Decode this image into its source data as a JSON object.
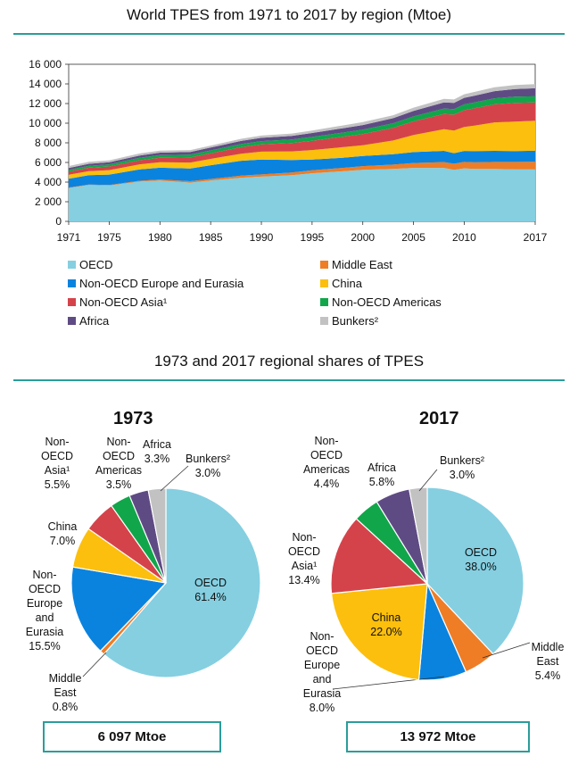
{
  "titles": {
    "area": "World TPES from 1971 to 2017 by region (Mtoe)",
    "pies": "1973 and 2017 regional shares of TPES"
  },
  "colors": {
    "OECD": "#85cfe1",
    "Middle East": "#ee7d26",
    "Non-OECD Europe and Eurasia": "#0a83df",
    "China": "#fcbf0d",
    "Non-OECD Asia": "#d5434a",
    "Non-OECD Americas": "#11a64a",
    "Africa": "#5f4b84",
    "Bunkers": "#c2c2c2",
    "rule": "#2a9d9a"
  },
  "chart_data": [
    {
      "type": "area",
      "stacked": true,
      "title": "World TPES from 1971 to 2017 by region (Mtoe)",
      "ylim": [
        0,
        16000
      ],
      "yticks": [
        "0",
        "2 000",
        "4 000",
        "6 000",
        "8 000",
        "10 000",
        "12 000",
        "14 000",
        "16 000"
      ],
      "xticks": [
        "1971",
        "1975",
        "1980",
        "1985",
        "1990",
        "1995",
        "2000",
        "2005",
        "2010",
        "2017"
      ],
      "x": [
        1971,
        1973,
        1975,
        1978,
        1980,
        1983,
        1985,
        1988,
        1990,
        1993,
        1995,
        1998,
        2000,
        2003,
        2005,
        2008,
        2009,
        2010,
        2011,
        2013,
        2015,
        2017
      ],
      "series": [
        {
          "name": "OECD",
          "values": [
            3400,
            3700,
            3650,
            4050,
            4150,
            3950,
            4150,
            4450,
            4550,
            4700,
            4900,
            5100,
            5250,
            5350,
            5450,
            5450,
            5250,
            5400,
            5350,
            5350,
            5300,
            5300
          ]
        },
        {
          "name": "Middle East",
          "values": [
            50,
            50,
            60,
            90,
            110,
            140,
            170,
            200,
            230,
            270,
            300,
            350,
            380,
            430,
            500,
            590,
            620,
            650,
            660,
            700,
            750,
            770
          ]
        },
        {
          "name": "Non-OECD Europe and Eurasia",
          "values": [
            900,
            950,
            1050,
            1150,
            1200,
            1300,
            1400,
            1520,
            1520,
            1280,
            1100,
            1020,
            1020,
            1060,
            1100,
            1140,
            1080,
            1120,
            1140,
            1130,
            1100,
            1120
          ]
        },
        {
          "name": "China",
          "values": [
            400,
            420,
            460,
            520,
            560,
            600,
            640,
            720,
            800,
            880,
            960,
            1080,
            1100,
            1400,
            1750,
            2200,
            2300,
            2450,
            2600,
            2900,
            3000,
            3060
          ]
        },
        {
          "name": "Non-OECD Asia¹",
          "values": [
            320,
            340,
            370,
            420,
            460,
            520,
            570,
            660,
            740,
            850,
            950,
            1060,
            1140,
            1280,
            1380,
            1550,
            1620,
            1700,
            1760,
            1840,
            1920,
            1870
          ]
        },
        {
          "name": "Non-OECD Americas",
          "values": [
            180,
            200,
            220,
            250,
            270,
            280,
            300,
            320,
            330,
            360,
            390,
            430,
            450,
            470,
            510,
            560,
            560,
            590,
            600,
            620,
            630,
            620
          ]
        },
        {
          "name": "Africa",
          "values": [
            190,
            200,
            210,
            230,
            250,
            270,
            290,
            320,
            340,
            370,
            400,
            440,
            470,
            520,
            560,
            620,
            640,
            670,
            690,
            720,
            780,
            810
          ]
        },
        {
          "name": "Bunkers²",
          "values": [
            200,
            210,
            200,
            210,
            210,
            200,
            200,
            220,
            230,
            240,
            250,
            280,
            300,
            300,
            330,
            360,
            350,
            370,
            380,
            390,
            400,
            420
          ]
        }
      ]
    },
    {
      "type": "pie",
      "year": "1973",
      "total": "6 097 Mtoe",
      "slices": [
        {
          "name": "OECD",
          "label": "OECD\n61.4%",
          "value": 61.4
        },
        {
          "name": "Middle East",
          "label": "Middle\nEast\n0.8%",
          "value": 0.8
        },
        {
          "name": "Non-OECD Europe and Eurasia",
          "label": "Non-\nOECD\nEurope\nand\nEurasia\n15.5%",
          "value": 15.5
        },
        {
          "name": "China",
          "label": "China\n7.0%",
          "value": 7.0
        },
        {
          "name": "Non-OECD Asia",
          "label": "Non-\nOECD\nAsia¹\n5.5%",
          "value": 5.5
        },
        {
          "name": "Non-OECD Americas",
          "label": "Non-\nOECD\nAmericas\n3.5%",
          "value": 3.5
        },
        {
          "name": "Africa",
          "label": "Africa\n3.3%",
          "value": 3.3
        },
        {
          "name": "Bunkers",
          "label": "Bunkers²\n3.0%",
          "value": 3.0
        }
      ]
    },
    {
      "type": "pie",
      "year": "2017",
      "total": "13 972 Mtoe",
      "slices": [
        {
          "name": "OECD",
          "label": "OECD\n38.0%",
          "value": 38.0
        },
        {
          "name": "Middle East",
          "label": "Middle\nEast\n5.4%",
          "value": 5.4
        },
        {
          "name": "Non-OECD Europe and Eurasia",
          "label": "Non-\nOECD\nEurope\nand\nEurasia\n8.0%",
          "value": 8.0
        },
        {
          "name": "China",
          "label": "China\n22.0%",
          "value": 22.0
        },
        {
          "name": "Non-OECD Asia",
          "label": "Non-\nOECD\nAsia¹\n13.4%",
          "value": 13.4
        },
        {
          "name": "Non-OECD Americas",
          "label": "Non-\nOECD\nAmericas\n4.4%",
          "value": 4.4
        },
        {
          "name": "Africa",
          "label": "Africa\n5.8%",
          "value": 5.8
        },
        {
          "name": "Bunkers",
          "label": "Bunkers²\n3.0%",
          "value": 3.0
        }
      ]
    }
  ],
  "legend": [
    {
      "label": "OECD",
      "color": "#85cfe1"
    },
    {
      "label": "Middle East",
      "color": "#ee7d26"
    },
    {
      "label": "Non-OECD Europe and Eurasia",
      "color": "#0a83df"
    },
    {
      "label": "China",
      "color": "#fcbf0d"
    },
    {
      "label": "Non-OECD Asia¹",
      "color": "#d5434a"
    },
    {
      "label": "Non-OECD Americas",
      "color": "#11a64a"
    },
    {
      "label": "Africa",
      "color": "#5f4b84"
    },
    {
      "label": "Bunkers²",
      "color": "#c2c2c2"
    }
  ]
}
